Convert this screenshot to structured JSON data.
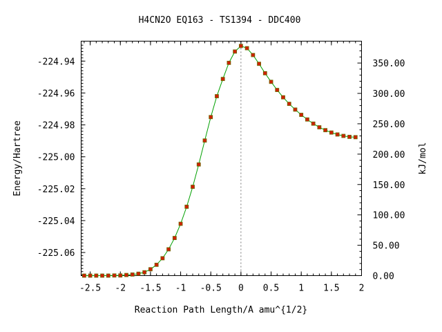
{
  "chart_data": {
    "type": "scatter",
    "title": "H4CN2O   EQ163 - TS1394 - DDC400",
    "xlabel": "Reaction Path Length/A amu^{1/2}",
    "ylabel": "Energy/Hartree",
    "y2label": "kJ/mol",
    "xlim": [
      -2.65,
      2.0
    ],
    "ylim": [
      -225.0745,
      -224.9275
    ],
    "y2lim": [
      0.0,
      386.0
    ],
    "x_ticks": [
      -2.5,
      -2,
      -1.5,
      -1,
      -0.5,
      0,
      0.5,
      1,
      1.5,
      2
    ],
    "x_tick_labels": [
      "-2.5",
      "-2",
      "-1.5",
      "-1",
      "-0.5",
      "0",
      "0.5",
      "1",
      "1.5",
      "2"
    ],
    "y_ticks": [
      -224.94,
      -224.96,
      -224.98,
      -225.0,
      -225.02,
      -225.04,
      -225.06
    ],
    "y_tick_labels": [
      "-224.94",
      "-224.96",
      "-224.98",
      "-225.00",
      "-225.02",
      "-225.04",
      "-225.06"
    ],
    "y2_ticks": [
      0,
      50,
      100,
      150,
      200,
      250,
      300,
      350
    ],
    "y2_tick_labels": [
      "0.00",
      "50.00",
      "100.00",
      "150.00",
      "200.00",
      "250.00",
      "300.00",
      "350.00"
    ],
    "ts_x": 0,
    "grid": false,
    "legend": "none",
    "colors": {
      "points": "#d02000",
      "point_edge": "#6a6a00",
      "curve": "#00a000",
      "ts_line": "#777777"
    },
    "series": [
      {
        "x": [
          -2.6,
          -2.5,
          -2.4,
          -2.3,
          -2.2,
          -2.1,
          -2.0,
          -1.9,
          -1.8,
          -1.7,
          -1.6,
          -1.5,
          -1.4,
          -1.3,
          -1.2,
          -1.1,
          -1.0,
          -0.9,
          -0.8,
          -0.7,
          -0.6,
          -0.5,
          -0.4,
          -0.3,
          -0.2,
          -0.1,
          0.0,
          0.1,
          0.2,
          0.3,
          0.4,
          0.5,
          0.6,
          0.7,
          0.8,
          0.9,
          1.0,
          1.1,
          1.2,
          1.3,
          1.4,
          1.5,
          1.6,
          1.7,
          1.8,
          1.9
        ],
        "y": [
          -225.0745,
          -225.0745,
          -225.0745,
          -225.0745,
          -225.0745,
          -225.0744,
          -225.0744,
          -225.0741,
          -225.0738,
          -225.0733,
          -225.0724,
          -225.0705,
          -225.0677,
          -225.0636,
          -225.058,
          -225.0509,
          -225.042,
          -225.0313,
          -225.0188,
          -225.0048,
          -224.9898,
          -224.9751,
          -224.962,
          -224.9512,
          -224.9411,
          -224.934,
          -224.9305,
          -224.9319,
          -224.9362,
          -224.9417,
          -224.9476,
          -224.953,
          -224.9581,
          -224.9627,
          -224.9668,
          -224.9704,
          -224.9737,
          -224.9766,
          -224.9792,
          -224.9815,
          -224.9833,
          -224.9848,
          -224.986,
          -224.9869,
          -224.9875,
          -224.9877
        ]
      }
    ]
  }
}
